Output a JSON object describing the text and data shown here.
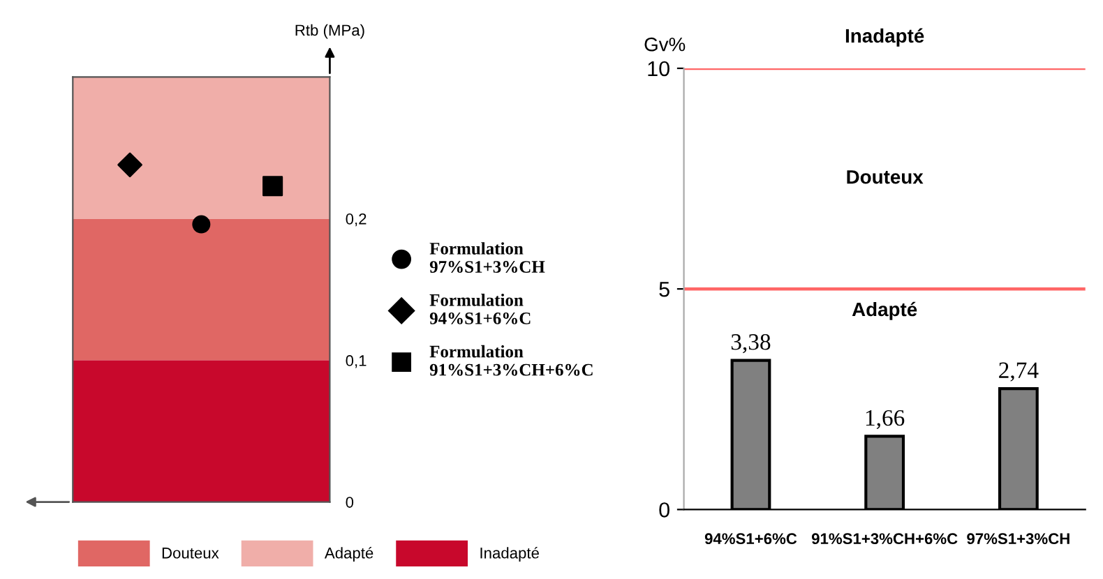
{
  "chart_data": [
    {
      "type": "scatter",
      "ylabel": "Rtb (MPa)",
      "categories": [
        null,
        null,
        null
      ],
      "series": [
        {
          "name": "Formulation\n97%S1+3%CH",
          "color": "#000000",
          "marker": "circle",
          "values": [
            null,
            0.196,
            null
          ]
        },
        {
          "name": "Formulation\n94%S1+6%C",
          "color": "#000000",
          "marker": "diamond",
          "values": [
            0.238,
            null,
            null
          ]
        },
        {
          "name": "Formulation\n91%S1+3%CH+6%C",
          "color": "#000000",
          "marker": "square",
          "values": [
            null,
            null,
            0.223
          ]
        }
      ],
      "bands": [
        {
          "axis": "y",
          "from": 0.1,
          "to": 0.2,
          "label": "Douteux",
          "color": "#e06764"
        },
        {
          "axis": "y",
          "from": 0.2,
          "to": 0.3,
          "label": "Adapté",
          "color": "#f0aea9"
        },
        {
          "axis": "y",
          "from": 0,
          "to": 0.1,
          "label": "Inadapté",
          "color": "#c8082c"
        }
      ],
      "ylim": [
        0,
        0.3
      ],
      "yticks": [
        {
          "value": 0,
          "label": "0"
        },
        {
          "value": 0.1,
          "label": "0,1"
        },
        {
          "value": 0.2,
          "label": "0,2"
        }
      ],
      "tick_labels": "y",
      "grid": false,
      "legend": "right"
    },
    {
      "type": "bar",
      "ylabel": "Gv%",
      "categories": [
        "94%S1+6%C",
        "91%S1+3%CH+6%C",
        "97%S1+3%CH"
      ],
      "values": [
        3.38,
        1.66,
        2.74
      ],
      "color": "#808080",
      "value_labels": [
        "3,38",
        "1,66",
        "2,74"
      ],
      "ylim": [
        0,
        10
      ],
      "yticks": [
        0,
        5,
        10
      ],
      "grid": false,
      "ref_lines": [
        {
          "axis": "y",
          "value": 5,
          "color": "#ff6666"
        },
        {
          "axis": "y",
          "value": 10,
          "color": "#ff6666"
        }
      ],
      "annotations": [
        "Inadapté",
        "Douteux",
        "Adapté"
      ]
    }
  ]
}
